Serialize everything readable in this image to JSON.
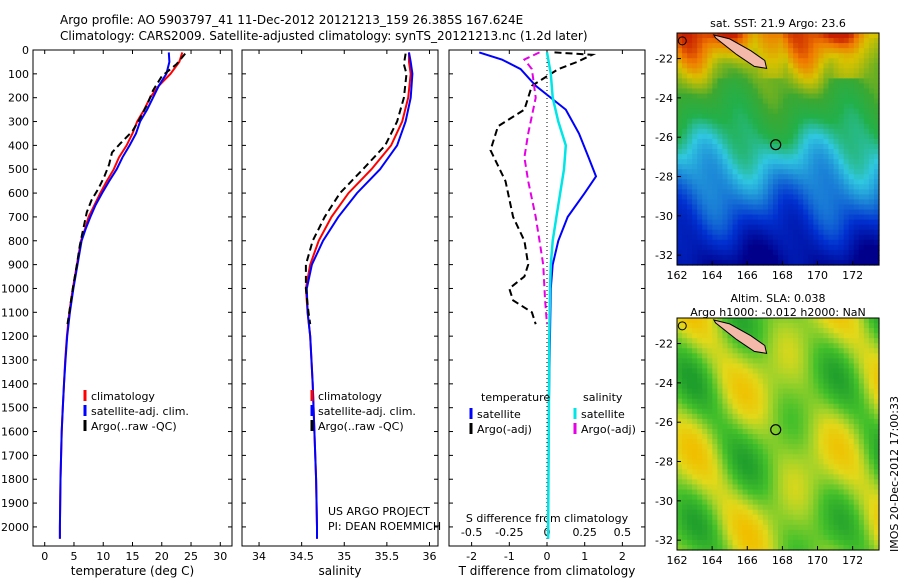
{
  "header": {
    "line1": "Argo profile: AO 5903797_41 11-Dec-2012 20121213_159 26.385S 167.624E",
    "line2": "Climatology: CARS2009. Satellite-adjusted climatology: synTS_20121213.nc (1.2d later)"
  },
  "colors": {
    "climatology": "#ff0000",
    "satellite": "#0000ff",
    "argo": "#000000",
    "sat_salinity": "#00e6e6",
    "argo_salinity": "#e600e6"
  },
  "chart_data": [
    {
      "type": "line",
      "xlabel": "temperature (deg C)",
      "ylabel": "",
      "xlim": [
        -2,
        32
      ],
      "ylim": [
        2080,
        0
      ],
      "xticks": [
        "0",
        "5",
        "10",
        "15",
        "20",
        "25",
        "30"
      ],
      "yticks": [
        "0",
        "100",
        "200",
        "300",
        "400",
        "500",
        "600",
        "700",
        "800",
        "900",
        "1000",
        "1100",
        "1200",
        "1300",
        "1400",
        "1500",
        "1600",
        "1700",
        "1800",
        "1900",
        "2000"
      ],
      "legend": [
        "climatology",
        "satellite-adj. clim.",
        "Argo(..raw -QC)"
      ],
      "series": [
        {
          "name": "climatology",
          "style": "solid",
          "color": "#ff0000",
          "points": [
            [
              23.5,
              10
            ],
            [
              23.0,
              50
            ],
            [
              21.5,
              100
            ],
            [
              19.5,
              150
            ],
            [
              18.0,
              200
            ],
            [
              17.0,
              250
            ],
            [
              15.8,
              300
            ],
            [
              15.0,
              350
            ],
            [
              14.0,
              400
            ],
            [
              12.7,
              450
            ],
            [
              11.8,
              500
            ],
            [
              10.6,
              550
            ],
            [
              9.5,
              600
            ],
            [
              8.5,
              650
            ],
            [
              7.5,
              700
            ],
            [
              6.9,
              750
            ],
            [
              6.2,
              800
            ],
            [
              5.5,
              900
            ],
            [
              4.8,
              1000
            ],
            [
              4.2,
              1100
            ],
            [
              3.8,
              1200
            ],
            [
              3.5,
              1300
            ],
            [
              3.3,
              1400
            ],
            [
              3.1,
              1500
            ],
            [
              2.9,
              1600
            ],
            [
              2.8,
              1700
            ],
            [
              2.7,
              1800
            ],
            [
              2.65,
              1900
            ],
            [
              2.6,
              2000
            ],
            [
              2.6,
              2050
            ]
          ]
        },
        {
          "name": "satellite-adj. clim.",
          "style": "solid",
          "color": "#0000ff",
          "points": [
            [
              21.2,
              10
            ],
            [
              21.3,
              50
            ],
            [
              20.8,
              100
            ],
            [
              19.5,
              150
            ],
            [
              18.5,
              200
            ],
            [
              17.5,
              250
            ],
            [
              16.3,
              300
            ],
            [
              15.6,
              350
            ],
            [
              14.5,
              400
            ],
            [
              13.3,
              450
            ],
            [
              12.3,
              500
            ],
            [
              11.0,
              550
            ],
            [
              9.8,
              600
            ],
            [
              8.7,
              650
            ],
            [
              7.8,
              700
            ],
            [
              7.0,
              750
            ],
            [
              6.3,
              800
            ],
            [
              5.6,
              900
            ],
            [
              4.9,
              1000
            ],
            [
              4.3,
              1100
            ],
            [
              3.85,
              1200
            ],
            [
              3.55,
              1300
            ],
            [
              3.3,
              1400
            ],
            [
              3.1,
              1500
            ],
            [
              2.9,
              1600
            ],
            [
              2.8,
              1700
            ],
            [
              2.7,
              1800
            ],
            [
              2.65,
              1900
            ],
            [
              2.6,
              2000
            ],
            [
              2.6,
              2050
            ]
          ]
        },
        {
          "name": "Argo(..raw -QC)",
          "style": "dashed",
          "color": "#000000",
          "points": [
            [
              24.0,
              15
            ],
            [
              22.5,
              60
            ],
            [
              20.0,
              110
            ],
            [
              18.5,
              170
            ],
            [
              17.5,
              230
            ],
            [
              16.2,
              290
            ],
            [
              15.0,
              340
            ],
            [
              13.0,
              390
            ],
            [
              11.5,
              430
            ],
            [
              11.0,
              480
            ],
            [
              10.2,
              530
            ],
            [
              9.2,
              580
            ],
            [
              8.0,
              630
            ],
            [
              7.2,
              680
            ],
            [
              6.6,
              750
            ],
            [
              6.0,
              820
            ],
            [
              5.5,
              900
            ],
            [
              4.8,
              1000
            ],
            [
              4.2,
              1100
            ],
            [
              3.9,
              1150
            ]
          ]
        }
      ]
    },
    {
      "type": "line",
      "xlabel": "salinity",
      "ylabel": "",
      "xlim": [
        33.8,
        36.1
      ],
      "ylim": [
        2080,
        0
      ],
      "xticks": [
        "34",
        "34.5",
        "35",
        "35.5",
        "36"
      ],
      "legend": [
        "climatology",
        "satellite-adj. clim.",
        "Argo(..raw -QC)"
      ],
      "annotation": [
        "US ARGO PROJECT",
        "PI: DEAN ROEMMICH"
      ],
      "series": [
        {
          "name": "climatology",
          "style": "solid",
          "color": "#ff0000",
          "points": [
            [
              35.76,
              10
            ],
            [
              35.76,
              50
            ],
            [
              35.78,
              100
            ],
            [
              35.75,
              200
            ],
            [
              35.68,
              300
            ],
            [
              35.55,
              400
            ],
            [
              35.32,
              500
            ],
            [
              35.05,
              600
            ],
            [
              34.85,
              700
            ],
            [
              34.7,
              800
            ],
            [
              34.6,
              900
            ],
            [
              34.55,
              1000
            ],
            [
              34.57,
              1100
            ],
            [
              34.6,
              1200
            ],
            [
              34.63,
              1400
            ],
            [
              34.65,
              1600
            ],
            [
              34.67,
              1800
            ],
            [
              34.68,
              2000
            ],
            [
              34.68,
              2050
            ]
          ]
        },
        {
          "name": "satellite-adj. clim.",
          "style": "solid",
          "color": "#0000ff",
          "points": [
            [
              35.76,
              10
            ],
            [
              35.78,
              50
            ],
            [
              35.8,
              100
            ],
            [
              35.78,
              200
            ],
            [
              35.72,
              300
            ],
            [
              35.62,
              400
            ],
            [
              35.42,
              500
            ],
            [
              35.15,
              600
            ],
            [
              34.93,
              700
            ],
            [
              34.75,
              800
            ],
            [
              34.62,
              900
            ],
            [
              34.56,
              1000
            ],
            [
              34.57,
              1100
            ],
            [
              34.6,
              1200
            ],
            [
              34.63,
              1400
            ],
            [
              34.65,
              1600
            ],
            [
              34.67,
              1800
            ],
            [
              34.68,
              2000
            ],
            [
              34.68,
              2050
            ]
          ]
        },
        {
          "name": "Argo(..raw -QC)",
          "style": "dashed",
          "color": "#000000",
          "points": [
            [
              35.72,
              15
            ],
            [
              35.7,
              60
            ],
            [
              35.73,
              100
            ],
            [
              35.7,
              200
            ],
            [
              35.62,
              300
            ],
            [
              35.48,
              400
            ],
            [
              35.22,
              500
            ],
            [
              34.95,
              600
            ],
            [
              34.77,
              700
            ],
            [
              34.63,
              800
            ],
            [
              34.55,
              900
            ],
            [
              34.55,
              1000
            ],
            [
              34.58,
              1100
            ],
            [
              34.6,
              1150
            ]
          ]
        }
      ]
    },
    {
      "type": "line",
      "xlabel": "T difference from climatology",
      "xlabel_top": "S difference from climatology",
      "xlim": [
        -2.6,
        2.6
      ],
      "ylim": [
        2080,
        0
      ],
      "xticks": [
        "-2",
        "-1",
        "0",
        "1",
        "2"
      ],
      "xticks_top": [
        "-0.5",
        "-0.25",
        "0",
        "0.25",
        "0.5"
      ],
      "legend": [
        "temperature",
        "satellite",
        "Argo(-adj)",
        "salinity",
        "satellite",
        "Argo(-adj)"
      ],
      "series": [
        {
          "name": "satellite",
          "style": "solid",
          "color": "#0000ff",
          "points": [
            [
              -1.8,
              10
            ],
            [
              -1.2,
              40
            ],
            [
              -0.7,
              80
            ],
            [
              -0.3,
              150
            ],
            [
              0.5,
              250
            ],
            [
              0.85,
              350
            ],
            [
              1.1,
              450
            ],
            [
              1.3,
              530
            ],
            [
              1.0,
              600
            ],
            [
              0.55,
              700
            ],
            [
              0.3,
              800
            ],
            [
              0.15,
              900
            ],
            [
              0.1,
              1000
            ],
            [
              0.08,
              1200
            ],
            [
              0.05,
              1500
            ],
            [
              0.03,
              2050
            ]
          ]
        },
        {
          "name": "Argo(-adj)",
          "style": "dashed",
          "color": "#000000",
          "points": [
            [
              0.2,
              10
            ],
            [
              1.2,
              20
            ],
            [
              0.8,
              50
            ],
            [
              0.3,
              80
            ],
            [
              -0.4,
              150
            ],
            [
              -0.6,
              250
            ],
            [
              -1.3,
              320
            ],
            [
              -1.5,
              420
            ],
            [
              -1.1,
              550
            ],
            [
              -0.9,
              700
            ],
            [
              -0.6,
              800
            ],
            [
              -0.5,
              900
            ],
            [
              -0.6,
              950
            ],
            [
              -1.0,
              1000
            ],
            [
              -0.9,
              1050
            ],
            [
              -0.4,
              1100
            ],
            [
              -0.3,
              1150
            ]
          ]
        },
        {
          "name": "satellite",
          "style": "solid",
          "color": "#00e6e6",
          "points": [
            [
              0.0,
              10
            ],
            [
              0.1,
              100
            ],
            [
              0.15,
              200
            ],
            [
              0.3,
              300
            ],
            [
              0.5,
              400
            ],
            [
              0.45,
              500
            ],
            [
              0.35,
              600
            ],
            [
              0.25,
              700
            ],
            [
              0.15,
              800
            ],
            [
              0.1,
              900
            ],
            [
              0.08,
              1000
            ],
            [
              0.06,
              1200
            ],
            [
              0.05,
              1500
            ],
            [
              0.03,
              2050
            ]
          ]
        },
        {
          "name": "Argo(-adj)",
          "style": "dashed",
          "color": "#e600e6",
          "points": [
            [
              -0.2,
              10
            ],
            [
              -0.6,
              40
            ],
            [
              -0.4,
              80
            ],
            [
              -0.3,
              200
            ],
            [
              -0.5,
              350
            ],
            [
              -0.6,
              450
            ],
            [
              -0.5,
              550
            ],
            [
              -0.3,
              700
            ],
            [
              -0.2,
              800
            ],
            [
              -0.1,
              900
            ],
            [
              -0.05,
              1050
            ],
            [
              0.0,
              1150
            ]
          ]
        }
      ]
    },
    {
      "type": "heatmap",
      "title": "sat. SST: 21.9 Argo: 23.6",
      "xlim": [
        162,
        173.5
      ],
      "ylim": [
        -32.5,
        -20.7
      ],
      "xticks": [
        "162",
        "164",
        "166",
        "168",
        "170",
        "172"
      ],
      "yticks": [
        "-22",
        "-24",
        "-26",
        "-28",
        "-30",
        "-32"
      ]
    },
    {
      "type": "heatmap",
      "title": "Altim. SLA: 0.038",
      "subtitle": "Argo h1000: -0.012 h2000: NaN",
      "xlim": [
        162,
        173.5
      ],
      "ylim": [
        -32.5,
        -20.7
      ],
      "xticks": [
        "162",
        "164",
        "166",
        "168",
        "170",
        "172"
      ],
      "yticks": [
        "-22",
        "-24",
        "-26",
        "-28",
        "-30",
        "-32"
      ]
    }
  ],
  "footer": {
    "stamp": "IMOS 20-Dec-2012 17:00:33"
  }
}
